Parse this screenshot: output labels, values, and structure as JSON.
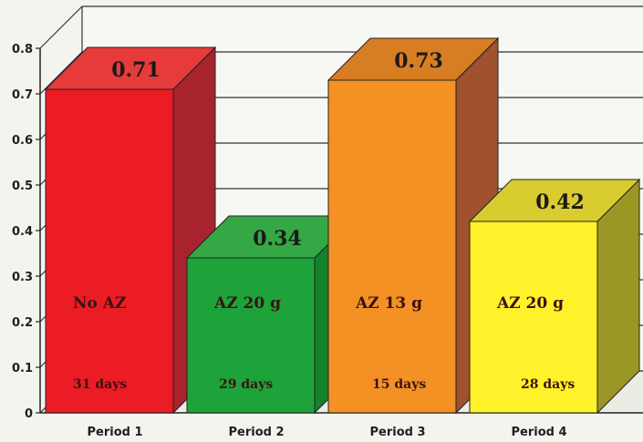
{
  "chart_data": {
    "type": "bar",
    "categories": [
      "Period 1",
      "Period 2",
      "Period 3",
      "Period 4"
    ],
    "values": [
      0.71,
      0.34,
      0.73,
      0.42
    ],
    "value_labels": [
      "0.71",
      "0.34",
      "0.73",
      "0.42"
    ],
    "bar_labels": [
      "No AZ",
      "AZ 20 g",
      "AZ 13 g",
      "AZ 20 g"
    ],
    "duration_labels": [
      "31 days",
      "29 days",
      "15 days",
      "28 days"
    ],
    "ylim": [
      0,
      0.8
    ],
    "yticks": [
      "0",
      "0.1",
      "0.2",
      "0.3",
      "0.4",
      "0.5",
      "0.6",
      "0.7",
      "0.8"
    ],
    "grid": true,
    "style": "3d",
    "colors": {
      "front": [
        "#ec1c24",
        "#1ea23a",
        "#f39124",
        "#fff22a"
      ],
      "top": [
        "#e73a3a",
        "#34a845",
        "#d77d24",
        "#d9cc2e"
      ],
      "side": [
        "#a8232d",
        "#13822a",
        "#a0522e",
        "#9c9624"
      ]
    }
  }
}
